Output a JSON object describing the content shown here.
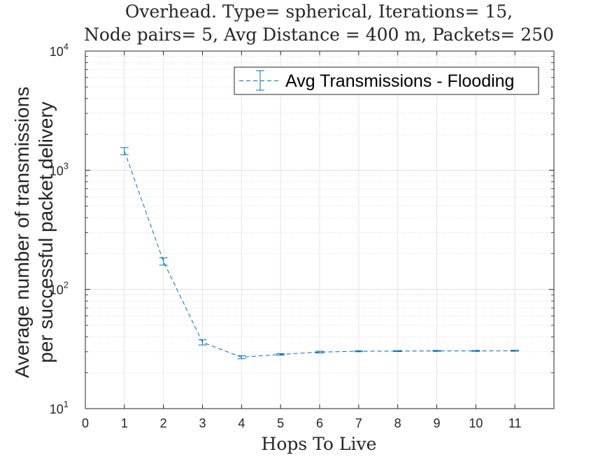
{
  "chart_data": {
    "type": "line",
    "title_lines": [
      "Overhead. Type= spherical, Iterations= 15,",
      "Node pairs= 5, Avg Distance = 400 m, Packets= 250"
    ],
    "xlabel": "Hops To Live",
    "ylabel_lines": [
      "Average number of transmissions",
      "per successful packet delivery"
    ],
    "x_ticks": [
      "0",
      "1",
      "2",
      "3",
      "4",
      "5",
      "6",
      "7",
      "8",
      "9",
      "10",
      "11"
    ],
    "xlim": [
      0,
      12
    ],
    "yscale": "log",
    "ylim": [
      10,
      10000
    ],
    "y_ticks": [
      {
        "value": 10,
        "base": "10",
        "exp": "1"
      },
      {
        "value": 100,
        "base": "10",
        "exp": "2"
      },
      {
        "value": 1000,
        "base": "10",
        "exp": "3"
      },
      {
        "value": 10000,
        "base": "10",
        "exp": "4"
      }
    ],
    "grid": true,
    "legend_position": "top-right",
    "series": [
      {
        "name": "Avg Transmissions - Flooding",
        "color": "#0072BD",
        "line_style": "dashed",
        "error_bars": true,
        "x": [
          1,
          2,
          3,
          4,
          5,
          6,
          7,
          8,
          9,
          10,
          11
        ],
        "y": [
          1450,
          172,
          36,
          27,
          28.5,
          29.8,
          30.3,
          30.4,
          30.5,
          30.5,
          30.6
        ],
        "err": [
          100,
          12,
          1.8,
          0.8,
          0.4,
          0.5,
          0.3,
          0.3,
          0.3,
          0.3,
          0.3
        ]
      }
    ]
  }
}
